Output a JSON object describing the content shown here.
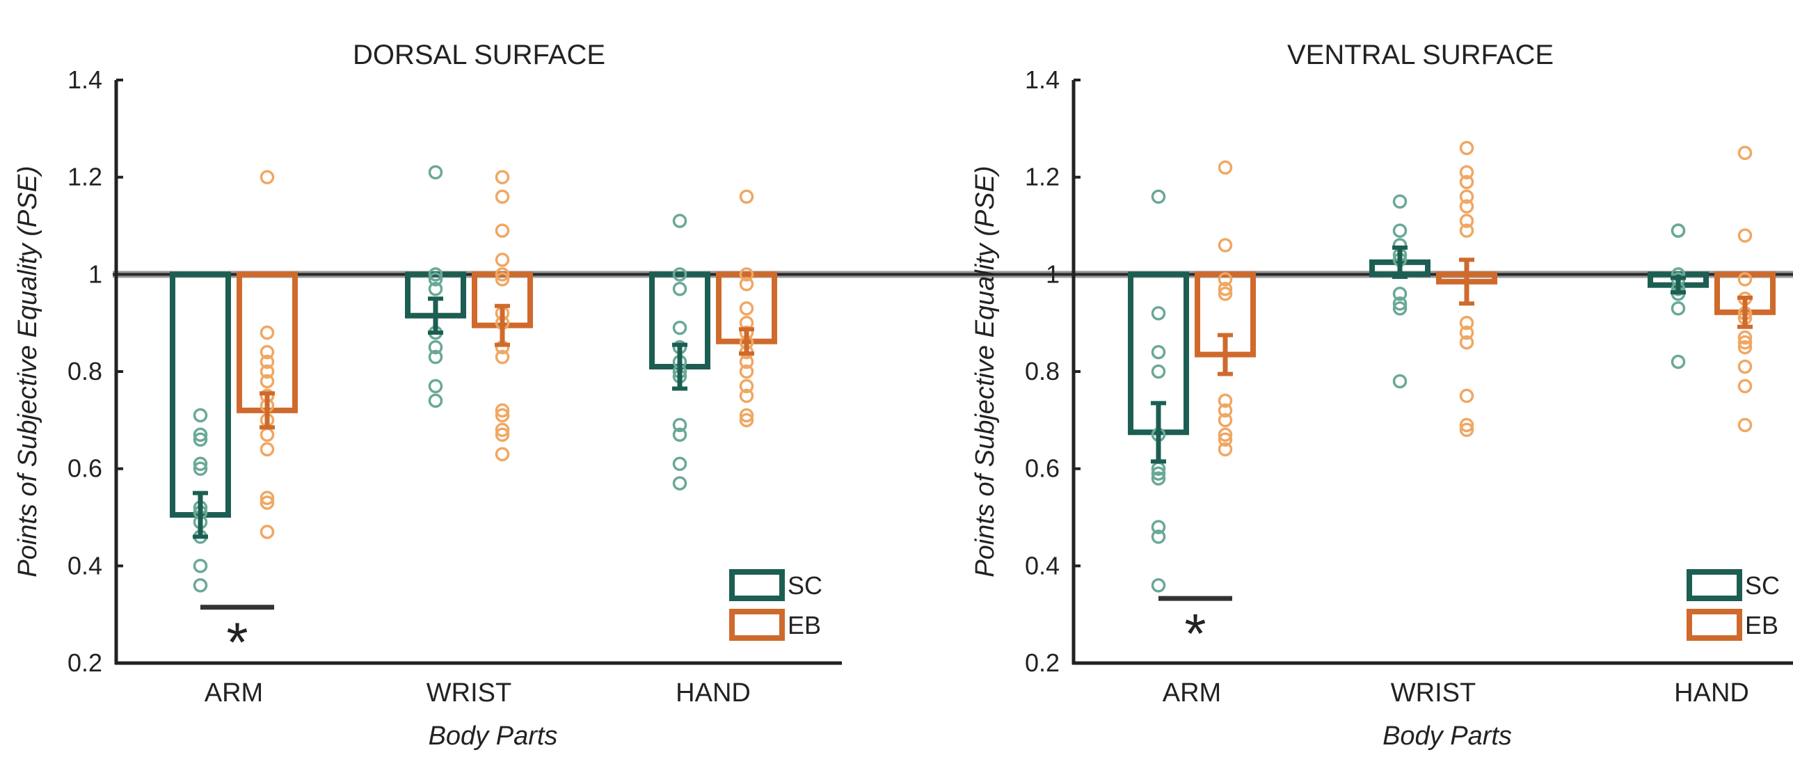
{
  "colors": {
    "SC": "#1c5e52",
    "EB": "#cf6a2c",
    "SC_points": "#6aa897",
    "EB_points": "#f0a763",
    "axis": "#222222"
  },
  "chart_data": [
    {
      "type": "bar",
      "title": "DORSAL SURFACE",
      "xlabel": "Body Parts",
      "ylabel": "Points of Subjective Equality (PSE)",
      "ylim": [
        0.2,
        1.4
      ],
      "yticks": [
        "0.2",
        "0.4",
        "0.6",
        "0.8",
        "1",
        "1.2",
        "1.4"
      ],
      "reference_line": 1.0,
      "categories": [
        "ARM",
        "WRIST",
        "HAND"
      ],
      "legend": {
        "placement": "bottom-right",
        "entries": [
          "SC",
          "EB"
        ]
      },
      "series": [
        {
          "name": "SC",
          "values": [
            0.505,
            0.915,
            0.81
          ],
          "errors": [
            0.045,
            0.035,
            0.045
          ],
          "points": [
            [
              0.71,
              0.67,
              0.66,
              0.61,
              0.6,
              0.52,
              0.51,
              0.49,
              0.46,
              0.4,
              0.36
            ],
            [
              1.21,
              1.0,
              0.99,
              0.97,
              0.88,
              0.85,
              0.83,
              0.77,
              0.74
            ],
            [
              1.11,
              1.0,
              0.97,
              0.89,
              0.85,
              0.82,
              0.8,
              0.79,
              0.69,
              0.67,
              0.61,
              0.57
            ]
          ]
        },
        {
          "name": "EB",
          "values": [
            0.72,
            0.895,
            0.862
          ],
          "errors": [
            0.035,
            0.04,
            0.025
          ],
          "points": [
            [
              1.2,
              0.88,
              0.84,
              0.82,
              0.8,
              0.78,
              0.75,
              0.73,
              0.7,
              0.67,
              0.64,
              0.54,
              0.53,
              0.47
            ],
            [
              1.2,
              1.16,
              1.09,
              1.03,
              1.0,
              0.99,
              0.92,
              0.9,
              0.85,
              0.83,
              0.72,
              0.71,
              0.68,
              0.67,
              0.63
            ],
            [
              1.16,
              1.0,
              0.98,
              0.93,
              0.9,
              0.88,
              0.86,
              0.84,
              0.82,
              0.8,
              0.77,
              0.75,
              0.71,
              0.7
            ]
          ]
        }
      ],
      "significance": {
        "category": "ARM",
        "y": 0.315,
        "label": "*"
      }
    },
    {
      "type": "bar",
      "title": "VENTRAL SURFACE",
      "xlabel": "Body Parts",
      "ylabel": "Points of Subjective Equality (PSE)",
      "ylim": [
        0.2,
        1.4
      ],
      "yticks": [
        "0.2",
        "0.4",
        "0.6",
        "0.8",
        "1",
        "1.2",
        "1.4"
      ],
      "reference_line": 1.0,
      "categories": [
        "ARM",
        "WRIST",
        "HAND"
      ],
      "legend": {
        "placement": "bottom-right",
        "entries": [
          "SC",
          "EB"
        ]
      },
      "series": [
        {
          "name": "SC",
          "values": [
            0.675,
            1.025,
            0.978
          ],
          "errors": [
            0.06,
            0.03,
            0.015
          ],
          "points": [
            [
              1.16,
              0.92,
              0.84,
              0.8,
              0.67,
              0.6,
              0.59,
              0.58,
              0.48,
              0.46,
              0.36
            ],
            [
              1.15,
              1.09,
              1.06,
              1.04,
              1.03,
              0.96,
              0.94,
              0.93,
              0.78
            ],
            [
              1.09,
              1.09,
              1.0,
              0.99,
              0.97,
              0.96,
              0.93,
              0.82
            ]
          ]
        },
        {
          "name": "EB",
          "values": [
            0.835,
            0.985,
            0.922
          ],
          "errors": [
            0.04,
            0.045,
            0.03
          ],
          "points": [
            [
              1.22,
              1.06,
              0.99,
              0.97,
              0.96,
              0.74,
              0.72,
              0.7,
              0.67,
              0.66,
              0.64
            ],
            [
              1.26,
              1.21,
              1.19,
              1.16,
              1.14,
              1.11,
              1.09,
              0.9,
              0.88,
              0.86,
              0.75,
              0.69,
              0.68
            ],
            [
              1.25,
              1.08,
              0.99,
              0.95,
              0.92,
              0.91,
              0.87,
              0.86,
              0.85,
              0.81,
              0.77,
              0.69
            ]
          ]
        }
      ],
      "significance": {
        "category": "ARM",
        "y": 0.333,
        "label": "*"
      }
    }
  ]
}
